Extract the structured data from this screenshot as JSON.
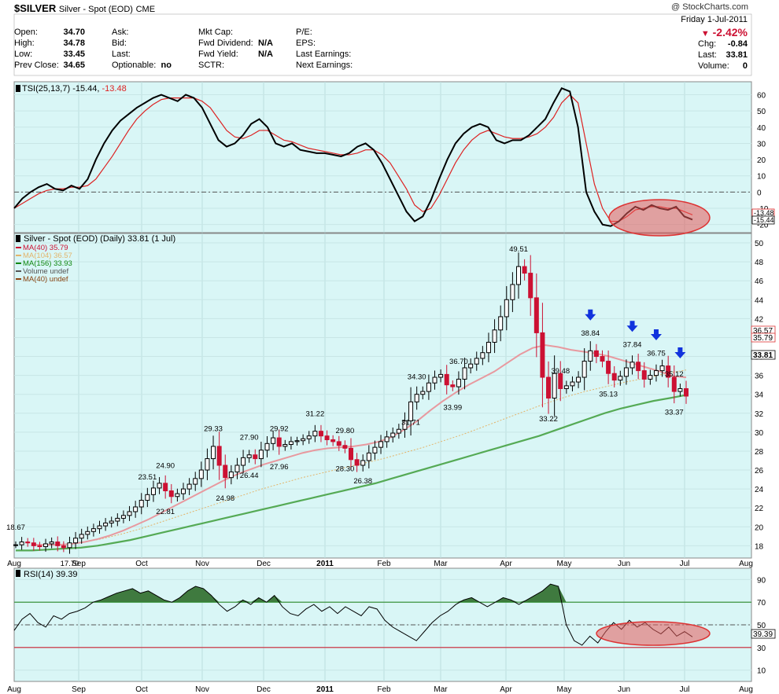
{
  "header": {
    "symbol": "$SILVER",
    "name": "Silver - Spot (EOD)",
    "exchange": "CME",
    "copyright": "@ StockCharts.com",
    "date": "Friday  1-Jul-2011",
    "pct_change": "-2.42%",
    "quote": [
      {
        "label": "Open:",
        "value": "34.70"
      },
      {
        "label": "High:",
        "value": "34.78"
      },
      {
        "label": "Low:",
        "value": "33.45"
      },
      {
        "label": "Prev Close:",
        "value": "34.65"
      }
    ],
    "bid_ask": [
      {
        "label": "Ask:",
        "value": ""
      },
      {
        "label": "Bid:",
        "value": ""
      },
      {
        "label": "Last:",
        "value": ""
      },
      {
        "label": "Optionable:",
        "value": "no"
      }
    ],
    "fundamentals": [
      {
        "label": "Mkt Cap:",
        "value": ""
      },
      {
        "label": "Fwd Dividend:",
        "value": "N/A"
      },
      {
        "label": "Fwd Yield:",
        "value": "N/A"
      },
      {
        "label": "SCTR:",
        "value": ""
      }
    ],
    "earnings": [
      {
        "label": "P/E:"
      },
      {
        "label": "EPS:"
      },
      {
        "label": "Last Earnings:"
      },
      {
        "label": "Next Earnings:"
      }
    ],
    "summary": [
      {
        "label": "Chg:",
        "value": "-0.84"
      },
      {
        "label": "Last:",
        "value": "33.81"
      },
      {
        "label": "Volume:",
        "value": "0"
      }
    ]
  },
  "colors": {
    "panel_bg": "#d9f6f6",
    "up": "#000000",
    "down": "#cc1133",
    "ma40": "#e8999f",
    "ma104": "#e3b46b",
    "ma156": "#55aa55",
    "rsi": "#000000",
    "rsi_fill": "#3f7a3f",
    "tsi_signal": "#dd2222",
    "arrow": "#1133dd",
    "highlight": "#e55a5a"
  },
  "chart_data": [
    {
      "type": "line",
      "title": "TSI(25,13,7) -15.44, -13.48",
      "legend": [
        {
          "name": "TSI(25,13,7)",
          "value": "-15.44"
        },
        {
          "name": "signal",
          "value": "-13.48"
        }
      ],
      "ylim": [
        -25,
        68
      ],
      "yticks": [
        60,
        50,
        40,
        30,
        20,
        10,
        0,
        -10,
        -20
      ],
      "ytick_labels": [
        "60",
        "50",
        "40",
        "30",
        "20",
        "10",
        "0",
        "-10",
        "-20"
      ],
      "right_tags": [
        "-13.48",
        "-15.44"
      ],
      "tsi": [
        -10,
        -4,
        0,
        3,
        5,
        2,
        1,
        4,
        2,
        8,
        20,
        30,
        38,
        44,
        48,
        52,
        55,
        58,
        60,
        58,
        56,
        60,
        58,
        52,
        42,
        32,
        28,
        30,
        35,
        42,
        45,
        40,
        30,
        28,
        30,
        26,
        25,
        24,
        24,
        23,
        22,
        24,
        28,
        30,
        26,
        18,
        8,
        -2,
        -12,
        -18,
        -15,
        -5,
        8,
        20,
        30,
        36,
        40,
        42,
        40,
        32,
        30,
        32,
        32,
        35,
        40,
        45,
        55,
        64,
        62,
        40,
        0,
        -12,
        -20,
        -21,
        -18,
        -13,
        -9,
        -11,
        -8,
        -10,
        -11,
        -9,
        -15,
        -17
      ],
      "signal": [
        -10,
        -7,
        -4,
        -1,
        1,
        2,
        2,
        3,
        3,
        4,
        8,
        15,
        22,
        30,
        38,
        45,
        50,
        54,
        57,
        58,
        58,
        58,
        58,
        56,
        52,
        45,
        38,
        34,
        33,
        35,
        38,
        38,
        35,
        32,
        31,
        29,
        27,
        26,
        25,
        24,
        23,
        23,
        24,
        26,
        26,
        23,
        18,
        10,
        2,
        -8,
        -12,
        -10,
        -2,
        8,
        18,
        26,
        32,
        36,
        38,
        36,
        34,
        33,
        33,
        34,
        36,
        40,
        46,
        55,
        60,
        55,
        30,
        5,
        -10,
        -18,
        -18,
        -15,
        -11,
        -10,
        -9,
        -9,
        -10,
        -10,
        -12,
        -14
      ],
      "annotations": [
        {
          "shape": "ellipse",
          "label": "highlight-tsi"
        }
      ]
    },
    {
      "type": "ohlc",
      "title": "Silver - Spot (EOD) (Daily) 33.81 (1 Jul)",
      "legend": [
        {
          "name": "MA(40)",
          "value": "35.79"
        },
        {
          "name": "MA(104)",
          "value": "36.57"
        },
        {
          "name": "MA(156)",
          "value": "33.93"
        },
        {
          "name": "Volume",
          "value": "undef"
        },
        {
          "name": "MA(40)",
          "value": "undef"
        }
      ],
      "ylim": [
        16.7,
        51
      ],
      "yticks": [
        50,
        48,
        46,
        44,
        42,
        40,
        38,
        36,
        34,
        32,
        30,
        28,
        26,
        24,
        22,
        20,
        18
      ],
      "ytick_labels": [
        "50",
        "48",
        "46",
        "44",
        "42",
        "40",
        "38",
        "36",
        "34",
        "32",
        "30",
        "28",
        "26",
        "24",
        "22",
        "20",
        "18"
      ],
      "xlabels": [
        "Aug",
        "Sep",
        "Oct",
        "Nov",
        "Dec",
        "2011",
        "Feb",
        "Mar",
        "Apr",
        "May",
        "Jun",
        "Jul",
        "Aug"
      ],
      "closes": [
        18.1,
        18.4,
        18.3,
        18,
        17.9,
        18.2,
        18.4,
        18.0,
        17.8,
        18.3,
        18.8,
        19.2,
        19.5,
        19.8,
        20.1,
        20.4,
        20.6,
        20.9,
        21.2,
        21.6,
        22.1,
        22.8,
        23.4,
        24.1,
        24.6,
        23.8,
        23.2,
        23.5,
        24.0,
        24.5,
        25.1,
        26.0,
        27.2,
        28.5,
        26.5,
        25.2,
        25.8,
        26.5,
        27.3,
        27.6,
        27.2,
        28.1,
        28.8,
        29.4,
        28.5,
        28.7,
        29.0,
        29.1,
        29.3,
        29.6,
        30.1,
        29.6,
        29.2,
        29.0,
        28.6,
        28.3,
        27.1,
        26.5,
        27.0,
        27.8,
        28.4,
        29.0,
        29.5,
        29.9,
        30.3,
        31.2,
        33.2,
        34.0,
        34.3,
        35.2,
        35.8,
        36.1,
        35.0,
        34.8,
        35.6,
        36.8,
        37.2,
        37.8,
        38.4,
        39.5,
        40.8,
        42.2,
        44.0,
        45.6,
        47.5,
        46.8,
        44.2,
        40.5,
        35.8,
        33.6,
        36.2,
        34.6,
        34.9,
        35.3,
        35.8,
        37.5,
        38.6,
        38.0,
        37.5,
        36.2,
        35.5,
        35.9,
        36.8,
        37.4,
        36.5,
        35.6,
        36.0,
        36.5,
        37.0,
        35.8,
        34.3,
        34.6,
        33.81
      ],
      "ma40": [
        18.1,
        18.1,
        18.1,
        18.2,
        18.4,
        18.7,
        19.1,
        19.6,
        20.2,
        20.8,
        21.5,
        22.2,
        22.9,
        23.6,
        24.3,
        25.0,
        25.6,
        26.1,
        26.6,
        27.0,
        27.4,
        27.8,
        28.1,
        28.3,
        28.4,
        28.5,
        28.7,
        29.0,
        29.5,
        30.3,
        31.2,
        32.3,
        33.3,
        34.2,
        35.0,
        35.7,
        36.4,
        37.3,
        38.2,
        38.9,
        39.2,
        39.0,
        38.7,
        38.5,
        38.3,
        38.0,
        37.6,
        37.2,
        36.8,
        36.4,
        35.9,
        35.79
      ],
      "ma104": [
        18.1,
        18.1,
        18.3,
        18.7,
        19.2,
        19.8,
        20.5,
        21.2,
        21.9,
        22.6,
        23.3,
        24.0,
        24.6,
        25.2,
        25.7,
        26.2,
        26.7,
        27.2,
        27.8,
        28.4,
        29.1,
        29.8,
        30.6,
        31.4,
        32.2,
        33.0,
        33.7,
        34.3,
        34.8,
        35.3,
        35.7,
        36.2,
        36.57
      ],
      "ma156": [
        17.5,
        17.5,
        17.6,
        17.7,
        17.8,
        18.0,
        18.3,
        18.6,
        19.0,
        19.4,
        19.8,
        20.2,
        20.6,
        21.0,
        21.4,
        21.8,
        22.2,
        22.6,
        23.0,
        23.4,
        23.8,
        24.2,
        24.6,
        25.1,
        25.6,
        26.1,
        26.6,
        27.1,
        27.6,
        28.1,
        28.6,
        29.1,
        29.6,
        30.2,
        30.8,
        31.4,
        32.0,
        32.5,
        32.9,
        33.3,
        33.6,
        33.93
      ],
      "data_labels": [
        {
          "i": 0,
          "value": "18.67",
          "pos": "above"
        },
        {
          "i": 9,
          "value": "17.70",
          "pos": "below"
        },
        {
          "i": 25,
          "value": "22.81",
          "pos": "below"
        },
        {
          "i": 22,
          "value": "23.51",
          "pos": "above"
        },
        {
          "i": 25,
          "value": "24.90",
          "pos": "above2"
        },
        {
          "i": 33,
          "value": "29.33",
          "pos": "above"
        },
        {
          "i": 35,
          "value": "24.98",
          "pos": "below"
        },
        {
          "i": 39,
          "value": "26.44",
          "pos": "below"
        },
        {
          "i": 39,
          "value": "27.90",
          "pos": "above"
        },
        {
          "i": 44,
          "value": "27.96",
          "pos": "below"
        },
        {
          "i": 44,
          "value": "29.92",
          "pos": "above"
        },
        {
          "i": 50,
          "value": "31.22",
          "pos": "above"
        },
        {
          "i": 55,
          "value": "28.30",
          "pos": "below"
        },
        {
          "i": 55,
          "value": "29.80",
          "pos": "above"
        },
        {
          "i": 58,
          "value": "26.38",
          "pos": "below"
        },
        {
          "i": 66,
          "value": "31.71",
          "pos": "below"
        },
        {
          "i": 67,
          "value": "34.30",
          "pos": "above"
        },
        {
          "i": 73,
          "value": "33.99",
          "pos": "below"
        },
        {
          "i": 74,
          "value": "36.70",
          "pos": "above"
        },
        {
          "i": 84,
          "value": "49.51",
          "pos": "above"
        },
        {
          "i": 89,
          "value": "33.22",
          "pos": "below"
        },
        {
          "i": 91,
          "value": "39.48",
          "pos": "above"
        },
        {
          "i": 96,
          "value": "38.84",
          "pos": "above"
        },
        {
          "i": 99,
          "value": "35.13",
          "pos": "below"
        },
        {
          "i": 103,
          "value": "37.84",
          "pos": "above"
        },
        {
          "i": 107,
          "value": "36.75",
          "pos": "above"
        },
        {
          "i": 110,
          "value": "33.37",
          "pos": "below"
        },
        {
          "i": 110,
          "value": "35.12",
          "pos": "above"
        }
      ],
      "right_tags": [
        "36.57",
        "35.79",
        "33.81"
      ],
      "arrows": [
        96,
        103,
        107,
        111
      ]
    },
    {
      "type": "line",
      "title": "RSI(14) 39.39",
      "legend": [
        {
          "name": "RSI(14)",
          "value": "39.39"
        }
      ],
      "ylim": [
        0,
        100
      ],
      "yticks": [
        90,
        70,
        50,
        30,
        10
      ],
      "ytick_labels": [
        "90",
        "70",
        "50",
        "30",
        "10"
      ],
      "levels": [
        70,
        50,
        30
      ],
      "right_tag": "39.39",
      "xlabels": [
        "Aug",
        "Sep",
        "Oct",
        "Nov",
        "Dec",
        "2011",
        "Feb",
        "Mar",
        "Apr",
        "May",
        "Jun",
        "Jul",
        "Aug"
      ],
      "values": [
        45,
        55,
        60,
        52,
        48,
        58,
        55,
        60,
        62,
        65,
        70,
        72,
        75,
        78,
        80,
        82,
        78,
        80,
        76,
        72,
        70,
        74,
        80,
        84,
        82,
        76,
        68,
        62,
        66,
        72,
        68,
        74,
        70,
        76,
        66,
        60,
        58,
        64,
        68,
        62,
        66,
        60,
        66,
        62,
        58,
        66,
        64,
        54,
        48,
        44,
        40,
        36,
        44,
        52,
        58,
        62,
        68,
        72,
        74,
        70,
        66,
        70,
        74,
        72,
        68,
        72,
        76,
        80,
        86,
        84,
        50,
        36,
        32,
        40,
        34,
        44,
        52,
        46,
        54,
        48,
        52,
        46,
        42,
        48,
        40,
        44,
        39.39
      ]
    }
  ]
}
